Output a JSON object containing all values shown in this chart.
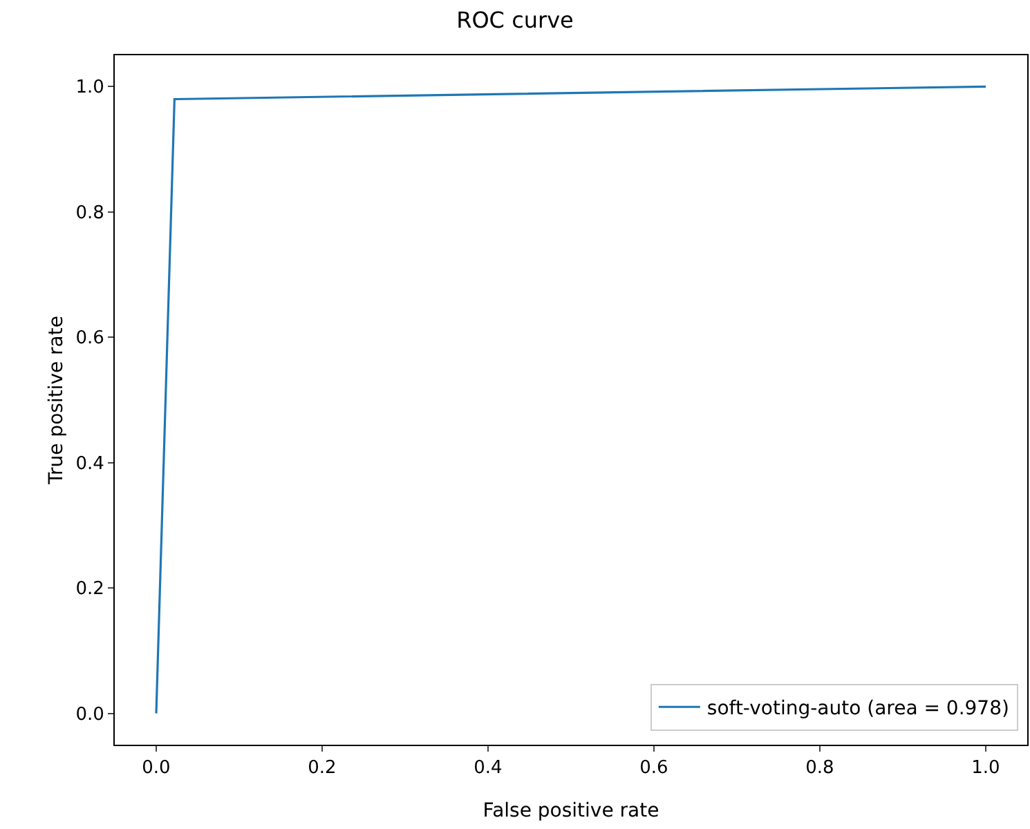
{
  "chart_data": {
    "type": "line",
    "title": "ROC curve",
    "xlabel": "False positive rate",
    "ylabel": "True positive rate",
    "series": [
      {
        "name": "soft-voting-auto (area = 0.978)",
        "color": "#1f77b4",
        "x": [
          0,
          0.022,
          1
        ],
        "values": [
          0,
          0.98,
          1
        ]
      }
    ],
    "xlim": [
      -0.05,
      1.05
    ],
    "ylim": [
      -0.05,
      1.05
    ],
    "xticks": [
      {
        "value": 0,
        "label": "0.0"
      },
      {
        "value": 0.2,
        "label": "0.2"
      },
      {
        "value": 0.4,
        "label": "0.4"
      },
      {
        "value": 0.6,
        "label": "0.6"
      },
      {
        "value": 0.8,
        "label": "0.8"
      },
      {
        "value": 1,
        "label": "1.0"
      }
    ],
    "yticks": [
      {
        "value": 0,
        "label": "0.0"
      },
      {
        "value": 0.2,
        "label": "0.2"
      },
      {
        "value": 0.4,
        "label": "0.4"
      },
      {
        "value": 0.6,
        "label": "0.6"
      },
      {
        "value": 0.8,
        "label": "0.8"
      },
      {
        "value": 1,
        "label": "1.0"
      }
    ],
    "grid": false,
    "legend": "bottom right",
    "marker": "none",
    "line_style": "solid"
  }
}
